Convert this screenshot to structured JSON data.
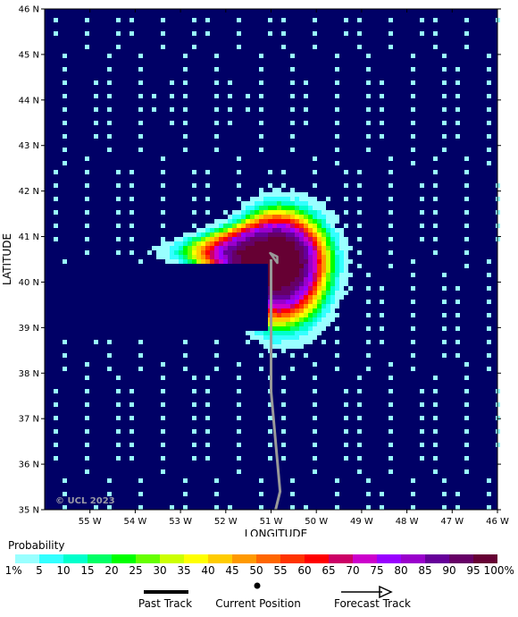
{
  "map": {
    "background_color": "#000066",
    "copyright": "© UCL 2023",
    "xlabel": "LONGITUDE",
    "ylabel": "LATITUDE",
    "lon_range": [
      -56,
      -46
    ],
    "lat_range": [
      35,
      46
    ],
    "lon_ticks": [
      {
        "value": -55,
        "label": "55 W"
      },
      {
        "value": -54,
        "label": "54 W"
      },
      {
        "value": -53,
        "label": "53 W"
      },
      {
        "value": -52,
        "label": "52 W"
      },
      {
        "value": -51,
        "label": "51 W"
      },
      {
        "value": -50,
        "label": "50 W"
      },
      {
        "value": -49,
        "label": "49 W"
      },
      {
        "value": -48,
        "label": "48 W"
      },
      {
        "value": -47,
        "label": "47 W"
      },
      {
        "value": -46,
        "label": "46 W"
      }
    ],
    "lat_ticks": [
      {
        "value": 35,
        "label": "35 N"
      },
      {
        "value": 36,
        "label": "36 N"
      },
      {
        "value": 37,
        "label": "37 N"
      },
      {
        "value": 38,
        "label": "38 N"
      },
      {
        "value": 39,
        "label": "39 N"
      },
      {
        "value": 40,
        "label": "40 N"
      },
      {
        "value": 41,
        "label": "41 N"
      },
      {
        "value": 42,
        "label": "42 N"
      },
      {
        "value": 43,
        "label": "43 N"
      },
      {
        "value": 44,
        "label": "44 N"
      },
      {
        "value": 45,
        "label": "45 N"
      },
      {
        "value": 46,
        "label": "46 N"
      }
    ],
    "track_color": "#999999",
    "past_track": [
      [
        -50.9,
        35.0
      ],
      [
        -50.8,
        35.4
      ],
      [
        -51.0,
        37.6
      ],
      [
        -51.0,
        40.5
      ]
    ],
    "current_position": [
      -50.95,
      40.5
    ],
    "probability_field": {
      "center": [
        -50.85,
        40.45
      ],
      "east_reach_deg": 1.3,
      "north_reach_deg": 1.3,
      "south_reach_deg": 1.6,
      "west_reach_deg": 1.0,
      "west_bulge_lat": 40.7,
      "west_bulge_extra_deg": 1.25,
      "cutoff_west_lon": -51.05,
      "cutoff_lat_range": [
        38.9,
        40.4
      ]
    }
  },
  "legend": {
    "title": "Probability",
    "colors": [
      "#99ffff",
      "#33ffff",
      "#00ffcc",
      "#00ff66",
      "#00ff00",
      "#66ff00",
      "#ccff00",
      "#ffff00",
      "#ffcc00",
      "#ff9900",
      "#ff6600",
      "#ff3300",
      "#ff0000",
      "#cc0066",
      "#cc00cc",
      "#9900ff",
      "#9900cc",
      "#660099",
      "#660066",
      "#660033"
    ],
    "labels": [
      "1%",
      "5",
      "10",
      "15",
      "20",
      "25",
      "30",
      "35",
      "40",
      "45",
      "50",
      "55",
      "60",
      "65",
      "70",
      "75",
      "80",
      "85",
      "90",
      "95",
      "100%"
    ],
    "past_track_label": "Past Track",
    "current_position_label": "Current Position",
    "forecast_track_label": "Forecast Track"
  }
}
